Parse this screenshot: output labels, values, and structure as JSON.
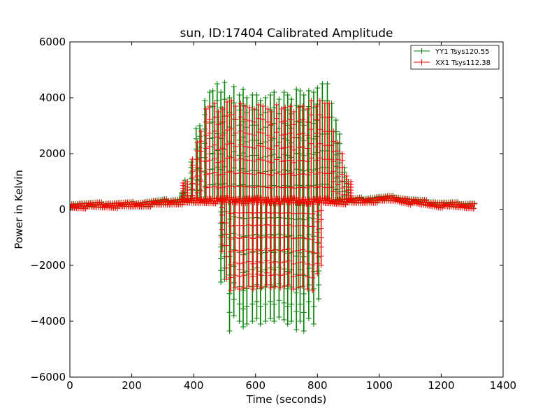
{
  "chart_data": {
    "type": "line",
    "title": "sun, ID:17404 Calibrated Amplitude",
    "xlabel": "Time (seconds)",
    "ylabel": "Power in Kelvin",
    "xlim": [
      0,
      1400
    ],
    "ylim": [
      -6000,
      6000
    ],
    "xticks": [
      0,
      200,
      400,
      600,
      800,
      1000,
      1200,
      1400
    ],
    "yticks": [
      -6000,
      -4000,
      -2000,
      0,
      2000,
      4000,
      6000
    ],
    "xtick_labels": [
      "0",
      "200",
      "400",
      "600",
      "800",
      "1000",
      "1200",
      "1400"
    ],
    "ytick_labels": [
      "−6000",
      "−4000",
      "−2000",
      "0",
      "2000",
      "4000",
      "6000"
    ],
    "grid": false,
    "legend_position": "top-right",
    "marker": "+",
    "series": [
      {
        "name": "YY1 Tsys120.55",
        "color": "#008000",
        "baseline": [
          [
            0,
            150
          ],
          [
            200,
            170
          ],
          [
            300,
            260
          ],
          [
            360,
            300
          ],
          [
            460,
            330
          ],
          [
            560,
            320
          ],
          [
            640,
            310
          ],
          [
            720,
            300
          ],
          [
            800,
            300
          ],
          [
            880,
            300
          ],
          [
            940,
            330
          ],
          [
            1000,
            380
          ],
          [
            1050,
            400
          ],
          [
            1100,
            300
          ],
          [
            1200,
            180
          ],
          [
            1310,
            150
          ]
        ],
        "peaks": [
          [
            362,
            600
          ],
          [
            372,
            1050
          ],
          [
            392,
            1700
          ],
          [
            408,
            2900
          ],
          [
            420,
            3000
          ],
          [
            436,
            3900
          ],
          [
            452,
            4200
          ],
          [
            462,
            4250
          ],
          [
            476,
            4500
          ],
          [
            488,
            4200
          ],
          [
            500,
            4550
          ],
          [
            516,
            4000
          ],
          [
            530,
            4400
          ],
          [
            548,
            4100
          ],
          [
            560,
            4300
          ],
          [
            572,
            4000
          ],
          [
            590,
            4100
          ],
          [
            604,
            4100
          ],
          [
            616,
            3900
          ],
          [
            632,
            4000
          ],
          [
            648,
            4100
          ],
          [
            660,
            4200
          ],
          [
            676,
            3950
          ],
          [
            692,
            4200
          ],
          [
            704,
            4100
          ],
          [
            716,
            3950
          ],
          [
            732,
            4300
          ],
          [
            744,
            4250
          ],
          [
            756,
            4100
          ],
          [
            772,
            4250
          ],
          [
            788,
            4200
          ],
          [
            800,
            4350
          ],
          [
            816,
            4500
          ],
          [
            832,
            4500
          ],
          [
            846,
            3800
          ],
          [
            860,
            3200
          ],
          [
            872,
            2700
          ],
          [
            888,
            1500
          ],
          [
            900,
            1000
          ]
        ],
        "troughs": [
          [
            488,
            -2600
          ],
          [
            500,
            -2500
          ],
          [
            516,
            -4350
          ],
          [
            530,
            -3800
          ],
          [
            548,
            -4000
          ],
          [
            560,
            -4200
          ],
          [
            572,
            -4100
          ],
          [
            590,
            -4000
          ],
          [
            604,
            -3900
          ],
          [
            616,
            -4100
          ],
          [
            632,
            -4000
          ],
          [
            648,
            -3900
          ],
          [
            660,
            -4000
          ],
          [
            676,
            -3850
          ],
          [
            692,
            -3950
          ],
          [
            704,
            -4100
          ],
          [
            716,
            -4000
          ],
          [
            732,
            -4300
          ],
          [
            744,
            -4000
          ],
          [
            756,
            -4350
          ],
          [
            772,
            -3900
          ],
          [
            788,
            -4100
          ],
          [
            804,
            -3200
          ]
        ]
      },
      {
        "name": "XX1 Tsys112.38",
        "color": "#ff0000",
        "baseline": [
          [
            0,
            130
          ],
          [
            200,
            160
          ],
          [
            300,
            230
          ],
          [
            360,
            280
          ],
          [
            460,
            320
          ],
          [
            560,
            330
          ],
          [
            640,
            320
          ],
          [
            720,
            310
          ],
          [
            800,
            300
          ],
          [
            880,
            280
          ],
          [
            940,
            300
          ],
          [
            1000,
            350
          ],
          [
            1050,
            380
          ],
          [
            1100,
            280
          ],
          [
            1200,
            160
          ],
          [
            1310,
            130
          ]
        ],
        "peaks": [
          [
            366,
            950
          ],
          [
            380,
            1000
          ],
          [
            396,
            1800
          ],
          [
            412,
            2400
          ],
          [
            424,
            2800
          ],
          [
            440,
            3600
          ],
          [
            452,
            3700
          ],
          [
            468,
            3800
          ],
          [
            480,
            3500
          ],
          [
            494,
            3600
          ],
          [
            508,
            3850
          ],
          [
            522,
            3900
          ],
          [
            536,
            3700
          ],
          [
            552,
            3800
          ],
          [
            566,
            3700
          ],
          [
            580,
            3650
          ],
          [
            596,
            3600
          ],
          [
            610,
            3750
          ],
          [
            624,
            3700
          ],
          [
            640,
            3600
          ],
          [
            652,
            3500
          ],
          [
            668,
            3750
          ],
          [
            684,
            3600
          ],
          [
            696,
            3650
          ],
          [
            712,
            3700
          ],
          [
            724,
            3500
          ],
          [
            740,
            3650
          ],
          [
            752,
            3700
          ],
          [
            768,
            3600
          ],
          [
            780,
            3900
          ],
          [
            796,
            3700
          ],
          [
            808,
            3900
          ],
          [
            824,
            3800
          ],
          [
            838,
            3800
          ],
          [
            852,
            2800
          ],
          [
            866,
            2400
          ],
          [
            880,
            2000
          ],
          [
            894,
            1200
          ],
          [
            908,
            1000
          ]
        ],
        "troughs": [
          [
            492,
            -1500
          ],
          [
            506,
            -2500
          ],
          [
            520,
            -2900
          ],
          [
            534,
            -2800
          ],
          [
            548,
            -2850
          ],
          [
            562,
            -2800
          ],
          [
            578,
            -2750
          ],
          [
            592,
            -2850
          ],
          [
            606,
            -2750
          ],
          [
            620,
            -2800
          ],
          [
            636,
            -2700
          ],
          [
            650,
            -2800
          ],
          [
            664,
            -2750
          ],
          [
            680,
            -2800
          ],
          [
            694,
            -2750
          ],
          [
            708,
            -2700
          ],
          [
            722,
            -2850
          ],
          [
            738,
            -2800
          ],
          [
            752,
            -2750
          ],
          [
            768,
            -2850
          ],
          [
            784,
            -2900
          ],
          [
            800,
            -2300
          ],
          [
            812,
            -2000
          ]
        ]
      }
    ]
  }
}
